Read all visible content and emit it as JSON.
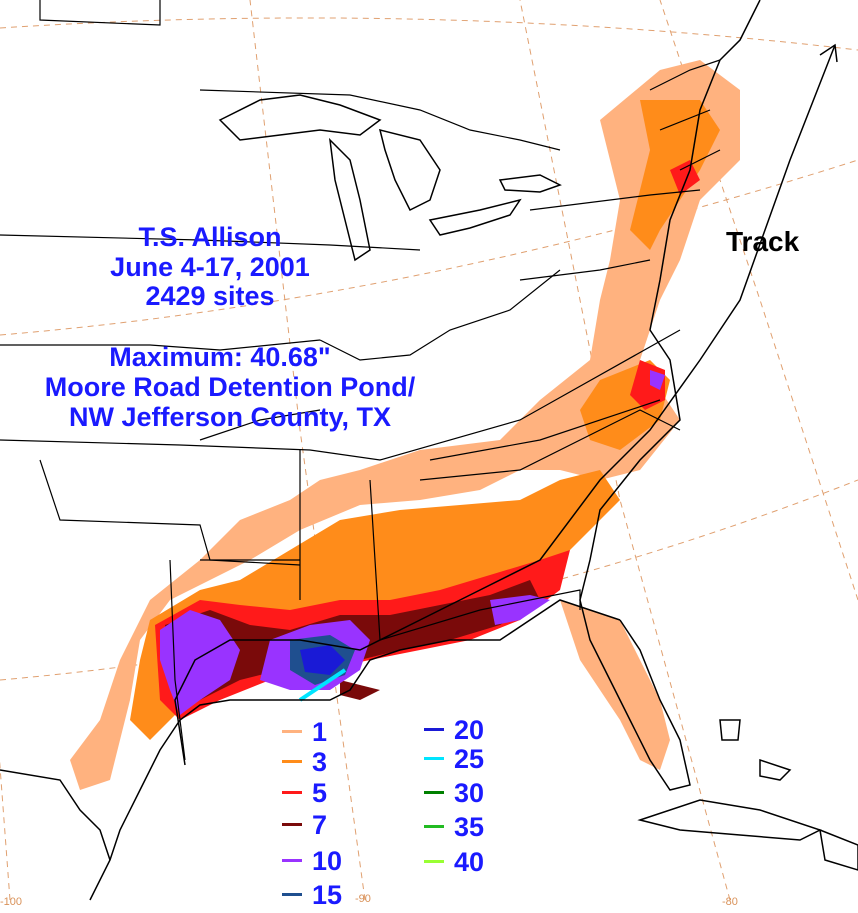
{
  "title": {
    "storm": "T.S. Allison",
    "dates": "June 4-17, 2001",
    "sites": "2429 sites"
  },
  "maximum": {
    "value_line": "Maximum: 40.68\"",
    "location_line1": "Moore Road Detention Pond/",
    "location_line2": "NW Jefferson County, TX"
  },
  "track_label": "Track",
  "legend": {
    "units": "inches",
    "items": [
      {
        "value": "1",
        "color": "#ffb27f"
      },
      {
        "value": "3",
        "color": "#ff8c1a"
      },
      {
        "value": "5",
        "color": "#ff1a1a"
      },
      {
        "value": "7",
        "color": "#7a0a0a"
      },
      {
        "value": "10",
        "color": "#9933ff"
      },
      {
        "value": "15",
        "color": "#1f4f8f"
      },
      {
        "value": "20",
        "color": "#1a1ad6"
      },
      {
        "value": "25",
        "color": "#00e5ff"
      },
      {
        "value": "30",
        "color": "#008000"
      },
      {
        "value": "35",
        "color": "#22bb22"
      },
      {
        "value": "40",
        "color": "#99ff33"
      }
    ]
  },
  "longitude_labels": [
    "-100",
    "-90",
    "-80"
  ],
  "colors": {
    "title_blue": "#1a1aff",
    "graticule": "#e0a070",
    "borders": "#000000"
  }
}
